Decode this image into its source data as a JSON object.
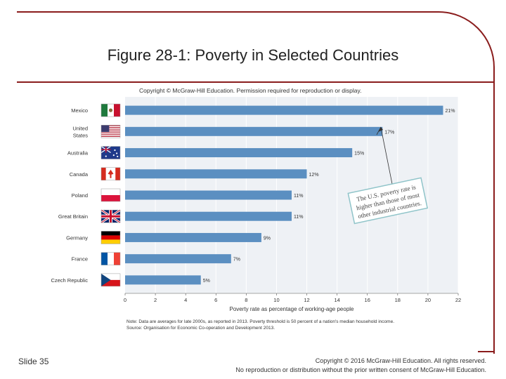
{
  "slide": {
    "title": "Figure 28-1: Poverty in Selected Countries",
    "number_label": "Slide 35",
    "copyright_line1": "Copyright © 2016 McGraw-Hill Education. All rights reserved.",
    "copyright_line2": "No reproduction or distribution without the prior written consent of McGraw-Hill Education."
  },
  "figure": {
    "permission": "Copyright © McGraw-Hill Education. Permission required for reproduction or display.",
    "callout": [
      "The U.S. poverty rate is",
      "higher than those of most",
      "other industrial countries."
    ],
    "note_line1": "Note: Data are averages for late 2000s, as reported in 2013. Poverty threshold is 50 percent of a nation's median household income.",
    "note_line2": "Source: Organisation for Economic Co-operation and Development 2013."
  },
  "chart_data": {
    "type": "bar",
    "orientation": "horizontal",
    "categories": [
      "Mexico",
      "United States",
      "Australia",
      "Canada",
      "Poland",
      "Great Britain",
      "Germany",
      "France",
      "Czech Republic"
    ],
    "category_lines": [
      [
        "Mexico"
      ],
      [
        "United",
        "States"
      ],
      [
        "Australia"
      ],
      [
        "Canada"
      ],
      [
        "Poland"
      ],
      [
        "Great Britain"
      ],
      [
        "Germany"
      ],
      [
        "France"
      ],
      [
        "Czech Republic"
      ]
    ],
    "values": [
      21,
      17,
      15,
      12,
      11,
      11,
      9,
      7,
      5
    ],
    "value_labels": [
      "21%",
      "17%",
      "15%",
      "12%",
      "11%",
      "11%",
      "9%",
      "7%",
      "5%"
    ],
    "xlabel": "Poverty rate as percentage of working-age people",
    "xlim": [
      0,
      22
    ],
    "xticks": [
      0,
      2,
      4,
      6,
      8,
      10,
      12,
      14,
      16,
      18,
      20,
      22
    ],
    "grid": true,
    "colors": {
      "bar": "#5b8fc1",
      "background": "#eef1f5",
      "grid": "#ffffff"
    }
  }
}
